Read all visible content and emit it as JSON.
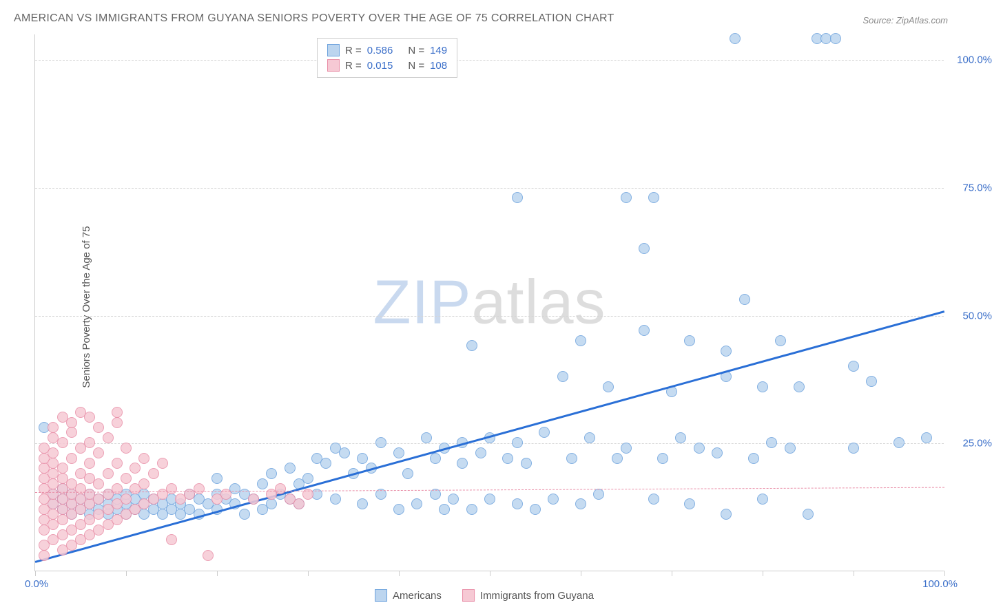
{
  "title": "AMERICAN VS IMMIGRANTS FROM GUYANA SENIORS POVERTY OVER THE AGE OF 75 CORRELATION CHART",
  "source": "Source: ZipAtlas.com",
  "y_axis_label": "Seniors Poverty Over the Age of 75",
  "watermark": {
    "zip": "ZIP",
    "atlas": "atlas"
  },
  "chart": {
    "type": "scatter",
    "xlim": [
      0,
      100
    ],
    "ylim": [
      0,
      105
    ],
    "x_ticks": [
      0,
      10,
      20,
      30,
      40,
      50,
      60,
      70,
      80,
      90,
      100
    ],
    "y_ticks": [
      25,
      50,
      75,
      100
    ],
    "y_tick_labels": [
      "25.0%",
      "50.0%",
      "75.0%",
      "100.0%"
    ],
    "x_label_0": "0.0%",
    "x_label_100": "100.0%",
    "grid_color": "#d5d5d5",
    "background_color": "#ffffff",
    "marker_radius": 8,
    "series": [
      {
        "name": "Americans",
        "color_fill": "#bcd5ef",
        "color_stroke": "#6ea3dd",
        "trend_color": "#2a6fd6",
        "trend_width": 2.5,
        "trend_dash": "none",
        "R": "0.586",
        "N": "149",
        "trend": {
          "x1": 0,
          "y1": 2,
          "x2": 100,
          "y2": 51
        },
        "points": [
          [
            1,
            28
          ],
          [
            2,
            13
          ],
          [
            2,
            15
          ],
          [
            3,
            12
          ],
          [
            3,
            14
          ],
          [
            3,
            16
          ],
          [
            4,
            11
          ],
          [
            4,
            13
          ],
          [
            4,
            15
          ],
          [
            5,
            12
          ],
          [
            5,
            14
          ],
          [
            6,
            11
          ],
          [
            6,
            13
          ],
          [
            6,
            15
          ],
          [
            7,
            12
          ],
          [
            7,
            14
          ],
          [
            8,
            11
          ],
          [
            8,
            13
          ],
          [
            8,
            15
          ],
          [
            9,
            12
          ],
          [
            9,
            14
          ],
          [
            10,
            11
          ],
          [
            10,
            13
          ],
          [
            10,
            15
          ],
          [
            11,
            12
          ],
          [
            11,
            14
          ],
          [
            12,
            11
          ],
          [
            12,
            13
          ],
          [
            12,
            15
          ],
          [
            13,
            12
          ],
          [
            13,
            14
          ],
          [
            14,
            11
          ],
          [
            14,
            13
          ],
          [
            15,
            12
          ],
          [
            15,
            14
          ],
          [
            16,
            11
          ],
          [
            16,
            13
          ],
          [
            17,
            12
          ],
          [
            17,
            15
          ],
          [
            18,
            11
          ],
          [
            18,
            14
          ],
          [
            19,
            13
          ],
          [
            20,
            12
          ],
          [
            20,
            15
          ],
          [
            20,
            18
          ],
          [
            21,
            14
          ],
          [
            22,
            13
          ],
          [
            22,
            16
          ],
          [
            23,
            11
          ],
          [
            23,
            15
          ],
          [
            24,
            14
          ],
          [
            25,
            12
          ],
          [
            25,
            17
          ],
          [
            26,
            13
          ],
          [
            26,
            19
          ],
          [
            27,
            15
          ],
          [
            28,
            14
          ],
          [
            28,
            20
          ],
          [
            29,
            13
          ],
          [
            29,
            17
          ],
          [
            30,
            18
          ],
          [
            31,
            15
          ],
          [
            31,
            22
          ],
          [
            32,
            21
          ],
          [
            33,
            14
          ],
          [
            33,
            24
          ],
          [
            34,
            23
          ],
          [
            35,
            19
          ],
          [
            36,
            13
          ],
          [
            36,
            22
          ],
          [
            37,
            20
          ],
          [
            38,
            15
          ],
          [
            38,
            25
          ],
          [
            40,
            12
          ],
          [
            40,
            23
          ],
          [
            41,
            19
          ],
          [
            42,
            13
          ],
          [
            43,
            26
          ],
          [
            44,
            15
          ],
          [
            44,
            22
          ],
          [
            45,
            12
          ],
          [
            45,
            24
          ],
          [
            46,
            14
          ],
          [
            47,
            21
          ],
          [
            47,
            25
          ],
          [
            48,
            12
          ],
          [
            48,
            44
          ],
          [
            49,
            23
          ],
          [
            50,
            14
          ],
          [
            50,
            26
          ],
          [
            52,
            22
          ],
          [
            53,
            13
          ],
          [
            53,
            25
          ],
          [
            53,
            73
          ],
          [
            54,
            21
          ],
          [
            55,
            12
          ],
          [
            56,
            27
          ],
          [
            57,
            14
          ],
          [
            58,
            38
          ],
          [
            59,
            22
          ],
          [
            60,
            13
          ],
          [
            60,
            45
          ],
          [
            61,
            26
          ],
          [
            62,
            15
          ],
          [
            63,
            36
          ],
          [
            64,
            22
          ],
          [
            65,
            24
          ],
          [
            65,
            73
          ],
          [
            67,
            47
          ],
          [
            67,
            63
          ],
          [
            68,
            14
          ],
          [
            68,
            73
          ],
          [
            69,
            22
          ],
          [
            70,
            35
          ],
          [
            71,
            26
          ],
          [
            72,
            13
          ],
          [
            72,
            45
          ],
          [
            73,
            24
          ],
          [
            75,
            23
          ],
          [
            76,
            11
          ],
          [
            76,
            38
          ],
          [
            76,
            43
          ],
          [
            77,
            104
          ],
          [
            78,
            53
          ],
          [
            79,
            22
          ],
          [
            80,
            14
          ],
          [
            80,
            36
          ],
          [
            81,
            25
          ],
          [
            82,
            45
          ],
          [
            83,
            24
          ],
          [
            84,
            36
          ],
          [
            85,
            11
          ],
          [
            86,
            104
          ],
          [
            87,
            104
          ],
          [
            88,
            104
          ],
          [
            90,
            24
          ],
          [
            90,
            40
          ],
          [
            92,
            37
          ],
          [
            95,
            25
          ],
          [
            98,
            26
          ]
        ]
      },
      {
        "name": "Immigrants from Guyana",
        "color_fill": "#f6c9d4",
        "color_stroke": "#e98fa8",
        "trend_color": "#e98fa8",
        "trend_width": 1,
        "trend_dash": "4,4",
        "R": "0.015",
        "N": "108",
        "trend": {
          "x1": 0,
          "y1": 15.5,
          "x2": 100,
          "y2": 16.5
        },
        "points": [
          [
            1,
            5
          ],
          [
            1,
            8
          ],
          [
            1,
            10
          ],
          [
            1,
            12
          ],
          [
            1,
            14
          ],
          [
            1,
            16
          ],
          [
            1,
            18
          ],
          [
            1,
            20
          ],
          [
            1,
            22
          ],
          [
            1,
            24
          ],
          [
            1,
            3
          ],
          [
            2,
            6
          ],
          [
            2,
            9
          ],
          [
            2,
            11
          ],
          [
            2,
            13
          ],
          [
            2,
            15
          ],
          [
            2,
            17
          ],
          [
            2,
            19
          ],
          [
            2,
            21
          ],
          [
            2,
            23
          ],
          [
            2,
            26
          ],
          [
            2,
            28
          ],
          [
            3,
            4
          ],
          [
            3,
            7
          ],
          [
            3,
            10
          ],
          [
            3,
            12
          ],
          [
            3,
            14
          ],
          [
            3,
            16
          ],
          [
            3,
            18
          ],
          [
            3,
            20
          ],
          [
            3,
            25
          ],
          [
            3,
            30
          ],
          [
            4,
            5
          ],
          [
            4,
            8
          ],
          [
            4,
            11
          ],
          [
            4,
            13
          ],
          [
            4,
            15
          ],
          [
            4,
            17
          ],
          [
            4,
            22
          ],
          [
            4,
            27
          ],
          [
            4,
            29
          ],
          [
            5,
            6
          ],
          [
            5,
            9
          ],
          [
            5,
            12
          ],
          [
            5,
            14
          ],
          [
            5,
            16
          ],
          [
            5,
            19
          ],
          [
            5,
            24
          ],
          [
            5,
            31
          ],
          [
            6,
            7
          ],
          [
            6,
            10
          ],
          [
            6,
            13
          ],
          [
            6,
            15
          ],
          [
            6,
            18
          ],
          [
            6,
            21
          ],
          [
            6,
            25
          ],
          [
            6,
            30
          ],
          [
            7,
            8
          ],
          [
            7,
            11
          ],
          [
            7,
            14
          ],
          [
            7,
            17
          ],
          [
            7,
            23
          ],
          [
            7,
            28
          ],
          [
            8,
            9
          ],
          [
            8,
            12
          ],
          [
            8,
            15
          ],
          [
            8,
            19
          ],
          [
            8,
            26
          ],
          [
            9,
            10
          ],
          [
            9,
            13
          ],
          [
            9,
            16
          ],
          [
            9,
            21
          ],
          [
            9,
            29
          ],
          [
            9,
            31
          ],
          [
            10,
            11
          ],
          [
            10,
            14
          ],
          [
            10,
            18
          ],
          [
            10,
            24
          ],
          [
            11,
            12
          ],
          [
            11,
            16
          ],
          [
            11,
            20
          ],
          [
            12,
            13
          ],
          [
            12,
            17
          ],
          [
            12,
            22
          ],
          [
            13,
            14
          ],
          [
            13,
            19
          ],
          [
            14,
            15
          ],
          [
            14,
            21
          ],
          [
            15,
            6
          ],
          [
            15,
            16
          ],
          [
            16,
            14
          ],
          [
            17,
            15
          ],
          [
            18,
            16
          ],
          [
            19,
            3
          ],
          [
            20,
            14
          ],
          [
            21,
            15
          ],
          [
            24,
            14
          ],
          [
            26,
            15
          ],
          [
            27,
            16
          ],
          [
            28,
            14
          ],
          [
            29,
            13
          ],
          [
            30,
            15
          ]
        ]
      }
    ]
  },
  "legend_bottom": [
    {
      "label": "Americans",
      "fill": "#bcd5ef",
      "stroke": "#6ea3dd"
    },
    {
      "label": "Immigrants from Guyana",
      "fill": "#f6c9d4",
      "stroke": "#e98fa8"
    }
  ]
}
